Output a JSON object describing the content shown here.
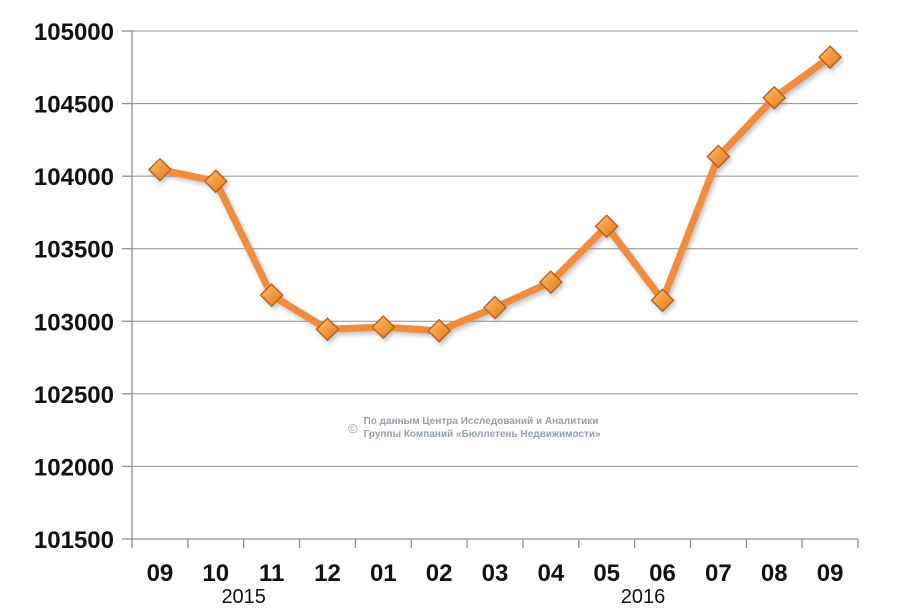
{
  "chart_data": {
    "type": "line",
    "title": "",
    "categories": [
      "09",
      "10",
      "11",
      "12",
      "01",
      "02",
      "03",
      "04",
      "05",
      "06",
      "07",
      "08",
      "09"
    ],
    "values": [
      104045,
      103965,
      103180,
      102945,
      102960,
      102935,
      103095,
      103270,
      103655,
      103145,
      104135,
      104540,
      104820
    ],
    "x_year_labels": [
      {
        "text": "2015",
        "position": 2.0
      },
      {
        "text": "2016",
        "position": 9.15
      }
    ],
    "ylim": [
      101500,
      105000
    ],
    "y_ticks": [
      101500,
      102000,
      102500,
      103000,
      103500,
      104000,
      104500,
      105000
    ],
    "grid": true,
    "legend": "none",
    "xlabel": "",
    "ylabel": "",
    "colors": {
      "line": "#EF8C3C",
      "marker_fill_light": "#FBC988",
      "marker_fill_mid": "#F49D43",
      "marker_fill_dark": "#DD7A1E",
      "marker_edge": "#B3621A",
      "grid": "#8F8F8F",
      "axis": "#8F8F8F",
      "tick_label": "#111111"
    }
  },
  "watermark": {
    "symbol": "©",
    "line1": "По данным Центра Исследований и Аналитики",
    "line2": "Группы Компаний «Бюллетень Недвижимости»",
    "color": "#95A0AB"
  }
}
